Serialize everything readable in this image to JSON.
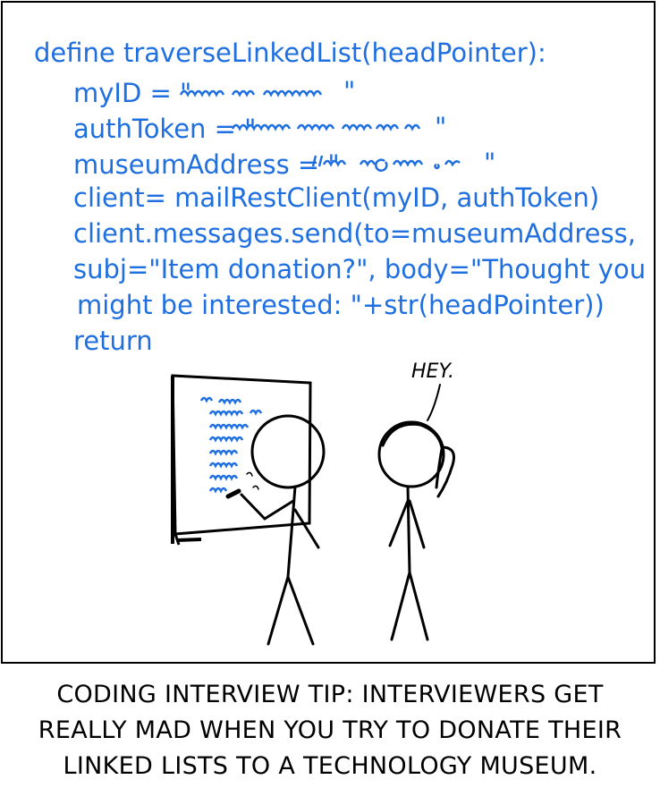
{
  "comic": {
    "code_lines": [
      "define traverseLinkedList(headPointer):",
      "myID = \"",
      "authToken = \"",
      "museumAddress = \"",
      "client= mailRestClient(myID, authToken)",
      "client.messages.send(to=museumAddress,",
      "subj=\"Item donation?\", body=\"Thought you",
      "might be interested: \"+str(headPointer))",
      "return"
    ],
    "code_line_ends": [
      "\"",
      "\"",
      "\""
    ],
    "speech": "HEY.",
    "caption_lines": [
      "CODING INTERVIEW TIP: INTERVIEWERS GET",
      "REALLY MAD WHEN YOU TRY TO DONATE THEIR",
      "LINKED LISTS TO A TECHNOLOGY MUSEUM."
    ],
    "colors": {
      "code_ink": "#1f6fe0",
      "line_ink": "#000000"
    }
  }
}
